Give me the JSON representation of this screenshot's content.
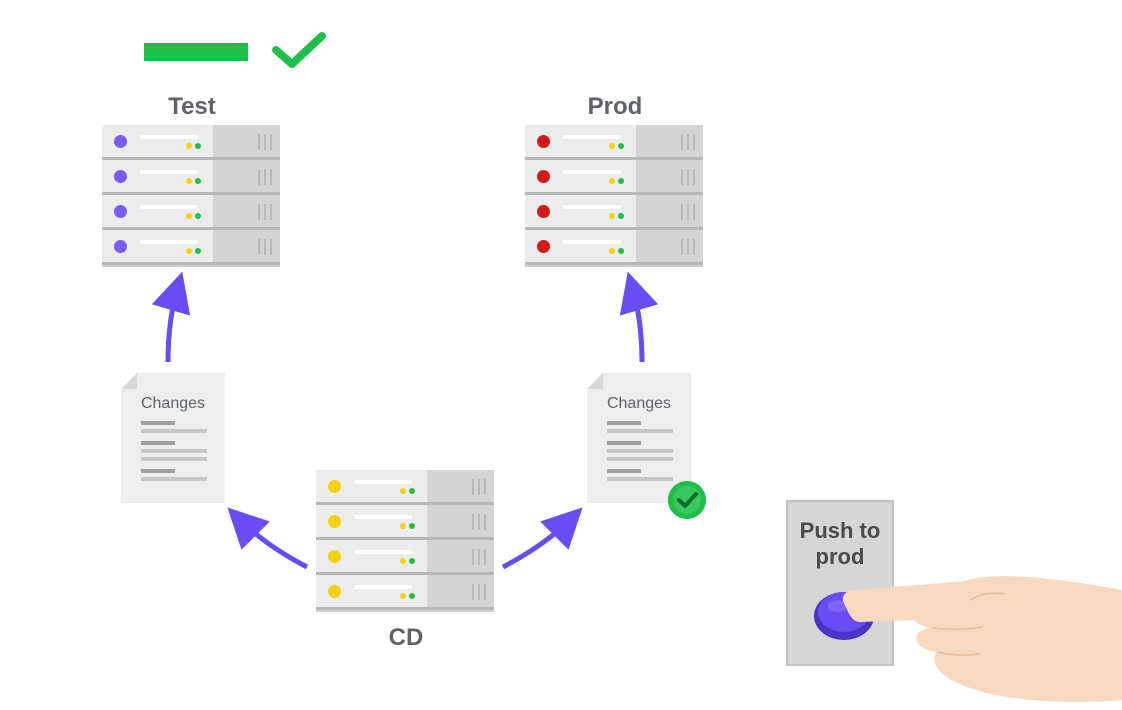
{
  "labels": {
    "test": "Test",
    "prod": "Prod",
    "cd": "CD"
  },
  "documents": {
    "left_title": "Changes",
    "right_title": "Changes"
  },
  "button": {
    "text_line1": "Push to",
    "text_line2": "prod"
  },
  "colors": {
    "accent": "#6a4cf5",
    "success": "#1fc049",
    "test_led": "#7b5cf2",
    "prod_led": "#d11a1a",
    "cd_led": "#f2d111",
    "text": "#5f6368"
  },
  "icons": {
    "top_check": "checkmark-icon",
    "badge": "checkmark-circle-icon",
    "hand": "pointing-hand-icon"
  }
}
